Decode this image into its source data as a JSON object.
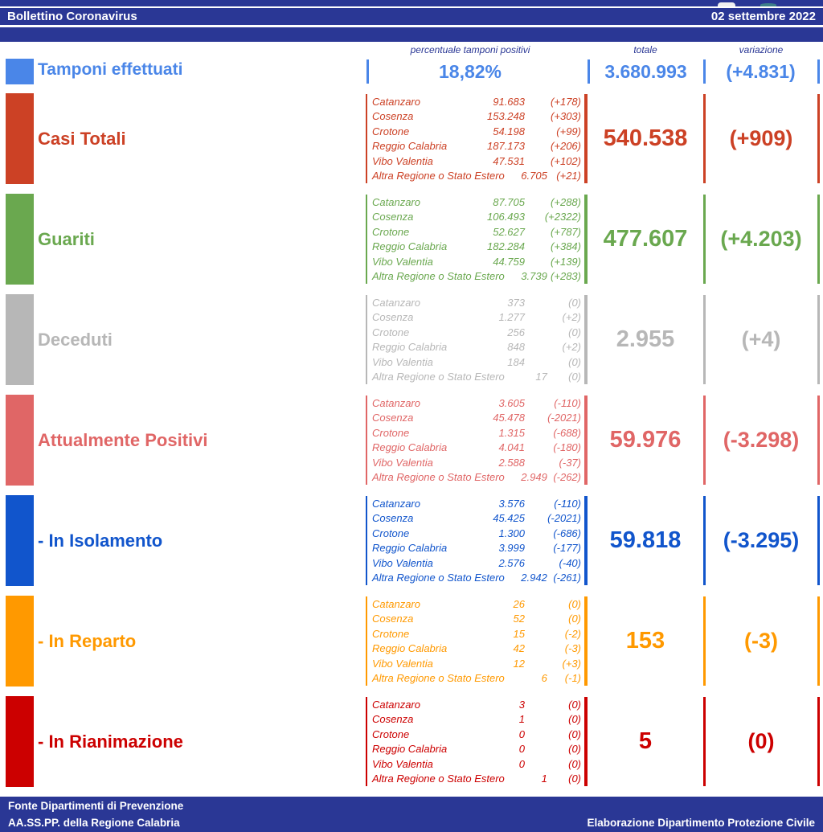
{
  "theme": {
    "bar_blue": "#2a3795",
    "bottom_edge": "#7d88cf"
  },
  "header": {
    "title": "Bollettino Coronavirus",
    "date": "02 settembre 2022"
  },
  "columns": {
    "percent": "percentuale tamponi positivi",
    "total": "totale",
    "variation": "variazione"
  },
  "summary_row": {
    "label": "Tamponi effettuati",
    "percent": "18,82%",
    "total": "3.680.993",
    "variation": "(+4.831)",
    "color": "#4a86e8"
  },
  "rows": [
    {
      "label": "Casi Totali",
      "color": "#cc4125",
      "total": "540.538",
      "variation": "(+909)",
      "details": [
        {
          "name": "Catanzaro",
          "value": "91.683",
          "delta": "(+178)"
        },
        {
          "name": "Cosenza",
          "value": "153.248",
          "delta": "(+303)"
        },
        {
          "name": "Crotone",
          "value": "54.198",
          "delta": "(+99)"
        },
        {
          "name": "Reggio Calabria",
          "value": "187.173",
          "delta": "(+206)"
        },
        {
          "name": "Vibo Valentia",
          "value": "47.531",
          "delta": "(+102)"
        },
        {
          "name": "Altra Regione o Stato Estero",
          "value": "6.705",
          "delta": "(+21)"
        }
      ]
    },
    {
      "label": "Guariti",
      "color": "#6aa84f",
      "total": "477.607",
      "variation": "(+4.203)",
      "details": [
        {
          "name": "Catanzaro",
          "value": "87.705",
          "delta": "(+288)"
        },
        {
          "name": "Cosenza",
          "value": "106.493",
          "delta": "(+2322)"
        },
        {
          "name": "Crotone",
          "value": "52.627",
          "delta": "(+787)"
        },
        {
          "name": "Reggio Calabria",
          "value": "182.284",
          "delta": "(+384)"
        },
        {
          "name": "Vibo Valentia",
          "value": "44.759",
          "delta": "(+139)"
        },
        {
          "name": "Altra Regione o Stato Estero",
          "value": "3.739",
          "delta": "(+283)"
        }
      ]
    },
    {
      "label": "Deceduti",
      "color": "#b7b7b7",
      "total": "2.955",
      "variation": "(+4)",
      "details": [
        {
          "name": "Catanzaro",
          "value": "373",
          "delta": "(0)"
        },
        {
          "name": "Cosenza",
          "value": "1.277",
          "delta": "(+2)"
        },
        {
          "name": "Crotone",
          "value": "256",
          "delta": "(0)"
        },
        {
          "name": "Reggio Calabria",
          "value": "848",
          "delta": "(+2)"
        },
        {
          "name": "Vibo Valentia",
          "value": "184",
          "delta": "(0)"
        },
        {
          "name": "Altra Regione o Stato Estero",
          "value": "17",
          "delta": "(0)"
        }
      ]
    },
    {
      "label": "Attualmente Positivi",
      "color": "#e06666",
      "total": "59.976",
      "variation": "(-3.298)",
      "details": [
        {
          "name": "Catanzaro",
          "value": "3.605",
          "delta": "(-110)"
        },
        {
          "name": "Cosenza",
          "value": "45.478",
          "delta": "(-2021)"
        },
        {
          "name": "Crotone",
          "value": "1.315",
          "delta": "(-688)"
        },
        {
          "name": "Reggio Calabria",
          "value": "4.041",
          "delta": "(-180)"
        },
        {
          "name": "Vibo Valentia",
          "value": "2.588",
          "delta": "(-37)"
        },
        {
          "name": "Altra Regione o Stato Estero",
          "value": "2.949",
          "delta": "(-262)"
        }
      ]
    },
    {
      "label": "- In Isolamento",
      "color": "#1155cc",
      "total": "59.818",
      "variation": "(-3.295)",
      "details": [
        {
          "name": "Catanzaro",
          "value": "3.576",
          "delta": "(-110)"
        },
        {
          "name": "Cosenza",
          "value": "45.425",
          "delta": "(-2021)"
        },
        {
          "name": "Crotone",
          "value": "1.300",
          "delta": "(-686)"
        },
        {
          "name": "Reggio Calabria",
          "value": "3.999",
          "delta": "(-177)"
        },
        {
          "name": "Vibo Valentia",
          "value": "2.576",
          "delta": "(-40)"
        },
        {
          "name": "Altra Regione o Stato Estero",
          "value": "2.942",
          "delta": "(-261)"
        }
      ]
    },
    {
      "label": "- In Reparto",
      "color": "#ff9900",
      "total": "153",
      "variation": "(-3)",
      "details": [
        {
          "name": "Catanzaro",
          "value": "26",
          "delta": "(0)"
        },
        {
          "name": "Cosenza",
          "value": "52",
          "delta": "(0)"
        },
        {
          "name": "Crotone",
          "value": "15",
          "delta": "(-2)"
        },
        {
          "name": "Reggio Calabria",
          "value": "42",
          "delta": "(-3)"
        },
        {
          "name": "Vibo Valentia",
          "value": "12",
          "delta": "(+3)"
        },
        {
          "name": "Altra Regione o Stato Estero",
          "value": "6",
          "delta": "(-1)"
        }
      ]
    },
    {
      "label": "- In Rianimazione",
      "color": "#cc0000",
      "total": "5",
      "variation": "(0)",
      "details": [
        {
          "name": "Catanzaro",
          "value": "3",
          "delta": "(0)"
        },
        {
          "name": "Cosenza",
          "value": "1",
          "delta": "(0)"
        },
        {
          "name": "Crotone",
          "value": "0",
          "delta": "(0)"
        },
        {
          "name": "Reggio Calabria",
          "value": "0",
          "delta": "(0)"
        },
        {
          "name": "Vibo Valentia",
          "value": "0",
          "delta": "(0)"
        },
        {
          "name": "Altra Regione o Stato Estero",
          "value": "1",
          "delta": "(0)"
        }
      ]
    }
  ],
  "footer": {
    "source_line1": "Fonte Dipartimenti di Prevenzione",
    "source_line2": "AA.SS.PP.  della Regione Calabria",
    "elaboration": "Elaborazione Dipartimento Protezione Civile"
  }
}
